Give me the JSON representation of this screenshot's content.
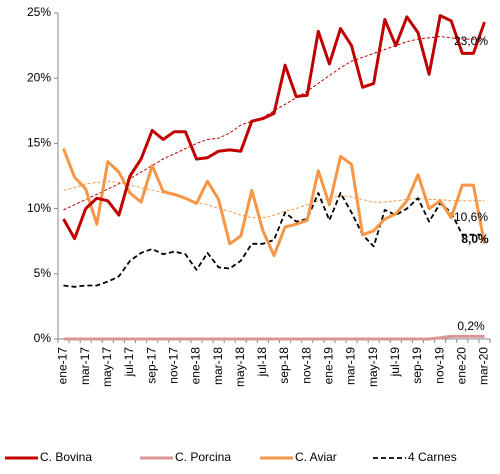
{
  "chart_data": {
    "type": "line",
    "categories": [
      "ene-17",
      null,
      "mar-17",
      null,
      "may-17",
      null,
      "jul-17",
      null,
      "sep-17",
      null,
      "nov-17",
      null,
      "ene-18",
      null,
      "mar-18",
      null,
      "may-18",
      null,
      "jul-18",
      null,
      "sep-18",
      null,
      "nov-18",
      null,
      "ene-19",
      null,
      "mar-19",
      null,
      "may-19",
      null,
      "jul-19",
      null,
      "sep-19",
      null,
      "nov-19",
      null,
      "ene-20",
      null,
      "mar-20"
    ],
    "series": [
      {
        "name": "C. Bovina",
        "color": "#c00000",
        "dash": false,
        "values": [
          9.2,
          7.7,
          10.0,
          10.8,
          10.6,
          9.5,
          12.5,
          13.8,
          16.0,
          15.3,
          15.9,
          15.9,
          13.8,
          13.9,
          14.4,
          14.5,
          14.4,
          16.7,
          16.9,
          17.3,
          21.0,
          18.6,
          18.7,
          23.6,
          21.1,
          23.8,
          22.5,
          19.3,
          19.6,
          24.5,
          22.5,
          24.7,
          23.5,
          20.3,
          24.8,
          24.4,
          21.9,
          21.9,
          24.3
        ]
      },
      {
        "name": "C. Porcina",
        "color": "#d99694",
        "dash": false,
        "values": [
          0,
          0,
          0,
          0,
          0,
          0,
          0,
          0,
          0,
          0,
          0,
          0,
          0,
          0,
          0,
          0,
          0,
          0,
          0,
          0,
          0,
          0,
          0,
          0,
          0,
          0,
          0,
          0,
          0,
          0,
          0,
          0,
          0,
          0,
          0.1,
          0.2,
          0.2,
          0.2,
          0.2
        ]
      },
      {
        "name": "C. Aviar",
        "color": "#f79646",
        "dash": false,
        "values": [
          14.6,
          12.4,
          11.5,
          8.8,
          13.6,
          12.8,
          11.2,
          10.5,
          13.3,
          11.3,
          11.1,
          10.8,
          10.4,
          12.1,
          10.7,
          7.3,
          7.9,
          11.4,
          8.3,
          6.4,
          8.6,
          8.8,
          9.1,
          12.9,
          10.3,
          14.0,
          13.4,
          8.0,
          8.3,
          9.2,
          9.6,
          10.6,
          12.6,
          10.0,
          10.6,
          9.3,
          11.8,
          11.8,
          7.3
        ]
      },
      {
        "name": "4 Carnes",
        "color": "#000000",
        "dash": true,
        "values": [
          4.1,
          4.0,
          4.1,
          4.1,
          4.4,
          4.8,
          6.0,
          6.6,
          6.9,
          6.5,
          6.7,
          6.5,
          5.3,
          6.6,
          5.5,
          5.4,
          6.0,
          7.3,
          7.3,
          7.6,
          9.7,
          9.0,
          9.2,
          11.2,
          9.1,
          11.2,
          9.7,
          8.0,
          7.1,
          9.9,
          9.5,
          10.0,
          10.8,
          9.0,
          10.4,
          9.7,
          8.0,
          8.0,
          8.0
        ]
      }
    ],
    "trend_lines": [
      {
        "color": "#c00000",
        "values": [
          9.9,
          10.3,
          10.7,
          11.1,
          11.5,
          11.9,
          12.3,
          12.8,
          13.3,
          13.8,
          14.2,
          14.6,
          15.0,
          15.3,
          15.4,
          15.8,
          16.4,
          16.7,
          17.0,
          17.5,
          18.0,
          18.5,
          19.0,
          19.6,
          20.2,
          20.8,
          21.3,
          21.6,
          21.9,
          22.2,
          22.5,
          22.8,
          23.0,
          23.1,
          23.2,
          23.1,
          23.0,
          23.0,
          23.0
        ]
      },
      {
        "color": "#f79646",
        "values": [
          11.4,
          11.6,
          11.9,
          12.0,
          12.1,
          12.0,
          11.8,
          11.6,
          11.4,
          11.2,
          11.0,
          10.8,
          10.5,
          10.3,
          10.0,
          9.8,
          9.5,
          9.3,
          9.3,
          9.5,
          9.8,
          10.0,
          10.3,
          10.6,
          10.8,
          11.0,
          10.9,
          10.7,
          10.5,
          10.5,
          10.6,
          10.7,
          10.8,
          10.7,
          10.7,
          10.6,
          10.6,
          10.6,
          10.6
        ]
      }
    ],
    "annotations": [
      {
        "text": "23,0%",
        "bold": false
      },
      {
        "text": "10,6%",
        "bold": false
      },
      {
        "text": "8,0%",
        "bold": true
      },
      {
        "text": "0,2%",
        "bold": false
      }
    ],
    "ylim": [
      0,
      25
    ],
    "yticks": [
      {
        "value": 0,
        "label": "0%"
      },
      {
        "value": 5,
        "label": "5%"
      },
      {
        "value": 10,
        "label": "10%"
      },
      {
        "value": 15,
        "label": "15%"
      },
      {
        "value": 20,
        "label": "20%"
      },
      {
        "value": 25,
        "label": "25%"
      }
    ],
    "grid": false,
    "legend": "bottom"
  }
}
